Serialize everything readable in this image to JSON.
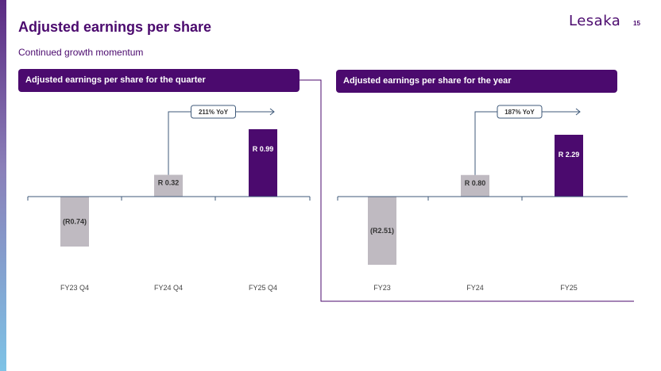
{
  "header": {
    "title": "Adjusted earnings per share",
    "subtitle": "Continued growth momentum",
    "logo_text": "Lesaka",
    "page_number": "15"
  },
  "panels": {
    "quarter": {
      "title": "Adjusted earnings per share for the quarter"
    },
    "year": {
      "title": "Adjusted earnings per share for the year"
    }
  },
  "colors": {
    "brand_purple": "#4b0a6e",
    "bar_grey": "#bfbac1",
    "axis": "#3f5a7a"
  },
  "chart_data": [
    {
      "type": "bar",
      "title": "Adjusted earnings per share for the quarter",
      "categories": [
        "FY23 Q4",
        "FY24 Q4",
        "FY25 Q4"
      ],
      "values": [
        -0.74,
        0.32,
        0.99
      ],
      "data_labels": [
        "(R0.74)",
        "R 0.32",
        "R 0.99"
      ],
      "bar_colors": [
        "#bfbac1",
        "#bfbac1",
        "#4b0a6e"
      ],
      "ylim": [
        -0.74,
        0.99
      ],
      "annotation": {
        "text": "211% YoY",
        "from_index": 1,
        "to_index": 2
      }
    },
    {
      "type": "bar",
      "title": "Adjusted earnings per share for the year",
      "categories": [
        "FY23",
        "FY24",
        "FY25"
      ],
      "values": [
        -2.51,
        0.8,
        2.29
      ],
      "data_labels": [
        "(R2.51)",
        "R 0.80",
        "R 2.29"
      ],
      "bar_colors": [
        "#bfbac1",
        "#bfbac1",
        "#4b0a6e"
      ],
      "ylim": [
        -2.51,
        2.29
      ],
      "annotation": {
        "text": "187% YoY",
        "from_index": 1,
        "to_index": 2
      }
    }
  ]
}
